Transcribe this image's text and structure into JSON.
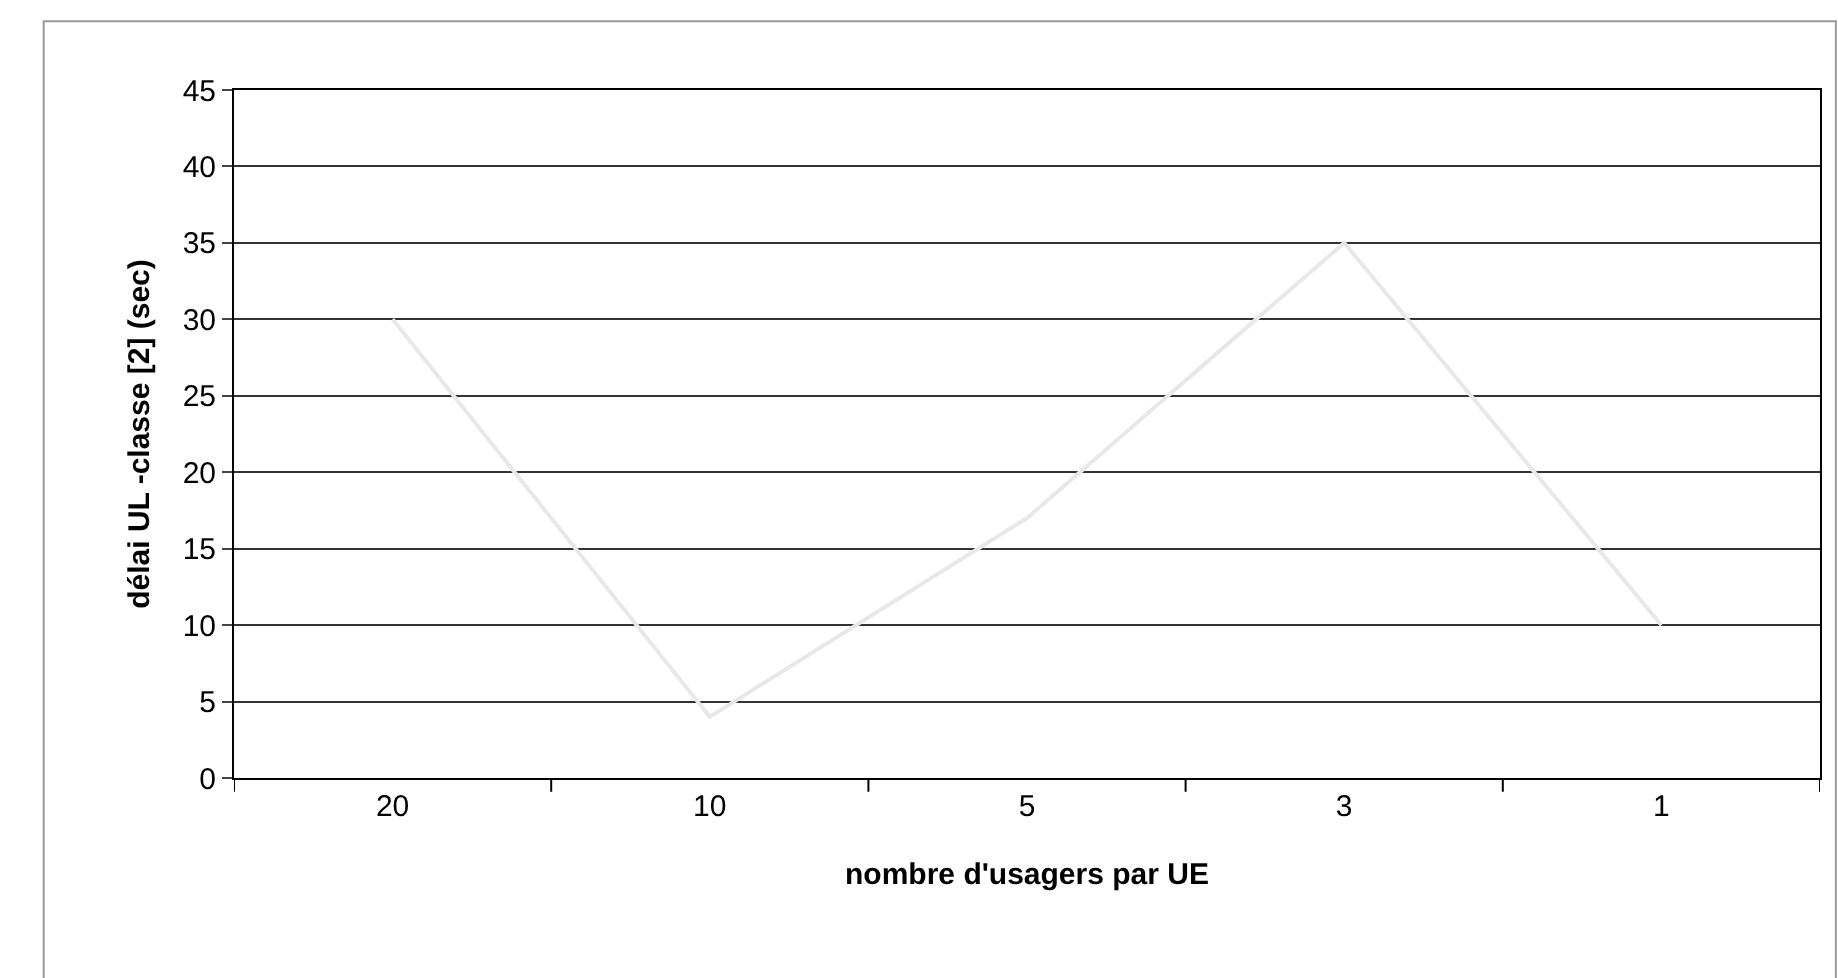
{
  "chart_data": {
    "type": "line",
    "xlabel": "nombre d'usagers par UE",
    "ylabel": "délai UL -classe [2] (sec)",
    "categories": [
      "20",
      "10",
      "5",
      "3",
      "1"
    ],
    "series": [
      {
        "color": "#e8e8e8",
        "values": [
          30,
          4,
          17,
          35,
          10
        ]
      }
    ],
    "ylim": [
      0,
      45
    ],
    "yticks": [
      0,
      5,
      10,
      15,
      20,
      25,
      30,
      35,
      40,
      45
    ],
    "grid": "y",
    "marker": "none",
    "line_style": "solid"
  }
}
